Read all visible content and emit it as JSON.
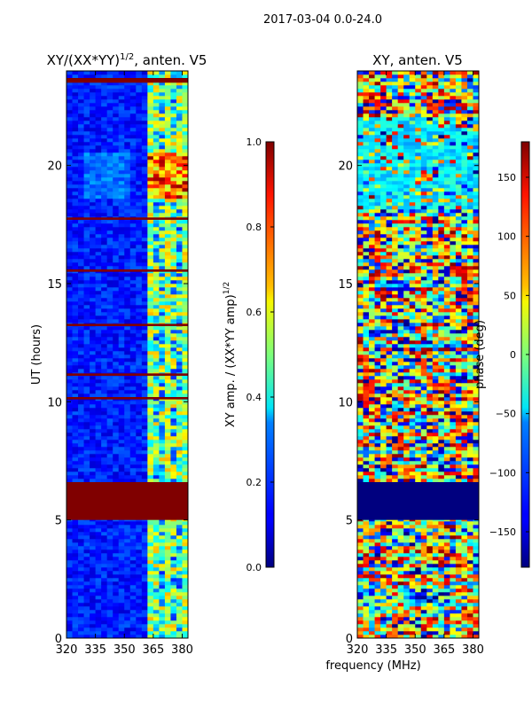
{
  "figure": {
    "suptitle": "2017-03-04 0.0-24.0",
    "shared_xlabel": "frequency (MHz)"
  },
  "chart_data": [
    {
      "type": "heatmap",
      "title_main": "XY/(XX*YY)",
      "title_exp": "1/2",
      "title_tail": ", anten. V5",
      "ylabel": "UT (hours)",
      "xlabel": "frequency (MHz)",
      "xlim": [
        320,
        383
      ],
      "ylim": [
        0,
        24
      ],
      "xticks": [
        320,
        335,
        350,
        365,
        380
      ],
      "yticks": [
        0,
        5,
        10,
        15,
        20
      ],
      "colormap": "jet",
      "colorbar": {
        "label_main": "XY amp. / (XX*YY amp)",
        "label_exp": "1/2",
        "vmin": 0.0,
        "vmax": 1.0,
        "ticks": [
          "0.0",
          "0.2",
          "0.4",
          "0.6",
          "0.8",
          "1.0"
        ]
      },
      "saturated_time_ranges_hours": [
        [
          5.0,
          6.6
        ],
        [
          23.5,
          23.7
        ],
        [
          17.7,
          17.8
        ],
        [
          15.5,
          15.6
        ],
        [
          13.2,
          13.3
        ],
        [
          11.1,
          11.2
        ],
        [
          10.1,
          10.2
        ]
      ],
      "bright_frequency_band_mhz": [
        360,
        383
      ]
    },
    {
      "type": "heatmap",
      "title": "XY, anten. V5",
      "ylabel": "",
      "xlabel": "frequency (MHz)",
      "xlim": [
        320,
        383
      ],
      "ylim": [
        0,
        24
      ],
      "xticks": [
        320,
        335,
        350,
        365,
        380
      ],
      "yticks": [
        0,
        5,
        10,
        15,
        20
      ],
      "colormap": "jet",
      "colorbar": {
        "label": "phase (deg)",
        "vmin": -180,
        "vmax": 180,
        "ticks": [
          "150",
          "100",
          "50",
          "0",
          "−50",
          "−100",
          "−150"
        ]
      },
      "flagged_time_ranges_hours": [
        [
          5.0,
          6.6
        ]
      ]
    }
  ]
}
